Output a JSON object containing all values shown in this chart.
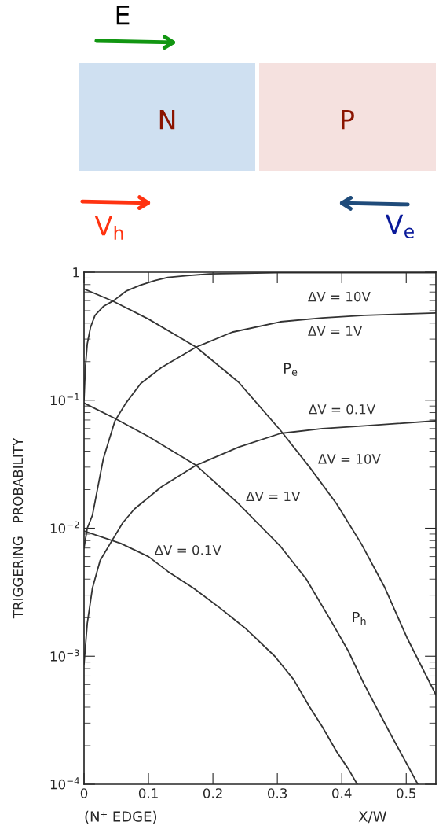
{
  "chart_data": [
    {
      "type": "other",
      "annotations": [
        "E",
        "N",
        "P",
        "V$_{h}$",
        "V$_{e}$"
      ]
    },
    {
      "type": "line",
      "ylabel": "TRIGGERING   PROBABILITY",
      "xlabel": "X/W",
      "log": "y",
      "grid": false,
      "marker": "none",
      "line_style": "solid",
      "xlim": [
        0,
        0.546
      ],
      "xticks": [
        0,
        {
          "value": 0.1,
          "label": "0.1"
        },
        {
          "value": 0.2,
          "label": "0.2"
        },
        {
          "value": 0.3,
          "label": "0.3"
        },
        {
          "value": 0.4,
          "label": "0.4"
        },
        {
          "value": 0.5,
          "label": "0.5"
        }
      ],
      "ylim": [
        0.0001,
        1
      ],
      "yticks": [
        {
          "value": 0.0001,
          "label": "10$^{−4}$"
        },
        {
          "value": 0.001,
          "label": "10$^{−3}$"
        },
        {
          "value": 0.01,
          "label": "10$^{−2}$"
        },
        {
          "value": 0.1,
          "label": "10$^{−1}$"
        },
        1
      ],
      "series": [
        {
          "name": "ΔV = 10V",
          "color": "#333333",
          "x": [
            0,
            0.002,
            0.005,
            0.01,
            0.017,
            0.03,
            0.046,
            0.065,
            0.087,
            0.11,
            0.13,
            0.16,
            0.195,
            0.25,
            0.3,
            0.4,
            0.546
          ],
          "values": [
            0.1,
            0.178,
            0.275,
            0.37,
            0.46,
            0.54,
            0.6,
            0.71,
            0.79,
            0.86,
            0.91,
            0.94,
            0.97,
            0.98,
            0.99,
            0.99,
            0.99
          ]
        },
        {
          "name": "ΔV = 1V",
          "color": "#333333",
          "x": [
            0,
            0.005,
            0.013,
            0.03,
            0.048,
            0.065,
            0.088,
            0.12,
            0.174,
            0.23,
            0.305,
            0.37,
            0.435,
            0.546
          ],
          "values": [
            0.007,
            0.01,
            0.0126,
            0.035,
            0.069,
            0.095,
            0.135,
            0.18,
            0.26,
            0.34,
            0.41,
            0.44,
            0.46,
            0.48
          ]
        },
        {
          "name": "ΔV = 0.1V",
          "color": "#333333",
          "x": [
            0,
            0.005,
            0.013,
            0.025,
            0.044,
            0.06,
            0.078,
            0.12,
            0.174,
            0.24,
            0.305,
            0.37,
            0.435,
            0.546
          ],
          "values": [
            0.00087,
            0.0018,
            0.0034,
            0.0056,
            0.0081,
            0.011,
            0.0141,
            0.021,
            0.031,
            0.043,
            0.055,
            0.06,
            0.063,
            0.069
          ]
        },
        {
          "name": "ΔV = 10V",
          "color": "#333333",
          "x": [
            0,
            0.046,
            0.1,
            0.174,
            0.24,
            0.305,
            0.35,
            0.392,
            0.43,
            0.466,
            0.501,
            0.546
          ],
          "values": [
            0.74,
            0.59,
            0.43,
            0.26,
            0.138,
            0.058,
            0.03,
            0.0155,
            0.0076,
            0.0035,
            0.0014,
            0.0005
          ]
        },
        {
          "name": "ΔV = 1V",
          "color": "#333333",
          "x": [
            0,
            0.048,
            0.1,
            0.174,
            0.24,
            0.305,
            0.345,
            0.383,
            0.41,
            0.435,
            0.475,
            0.518
          ],
          "values": [
            0.095,
            0.072,
            0.052,
            0.031,
            0.0155,
            0.0072,
            0.004,
            0.0019,
            0.0011,
            0.0006,
            0.00025,
            0.0001
          ]
        },
        {
          "name": "ΔV = 0.1V",
          "color": "#333333",
          "x": [
            0,
            0.057,
            0.1,
            0.13,
            0.17,
            0.21,
            0.25,
            0.296,
            0.325,
            0.349,
            0.37,
            0.392,
            0.41,
            0.424
          ],
          "values": [
            0.0095,
            0.0076,
            0.006,
            0.0046,
            0.0034,
            0.0024,
            0.00166,
            0.001,
            0.00066,
            0.00041,
            0.00028,
            0.00018,
            0.000132,
            0.0001
          ]
        }
      ],
      "annotations": [
        "P$_{e}$",
        "P$_{h}$",
        "(N⁺ EDGE)"
      ]
    }
  ]
}
